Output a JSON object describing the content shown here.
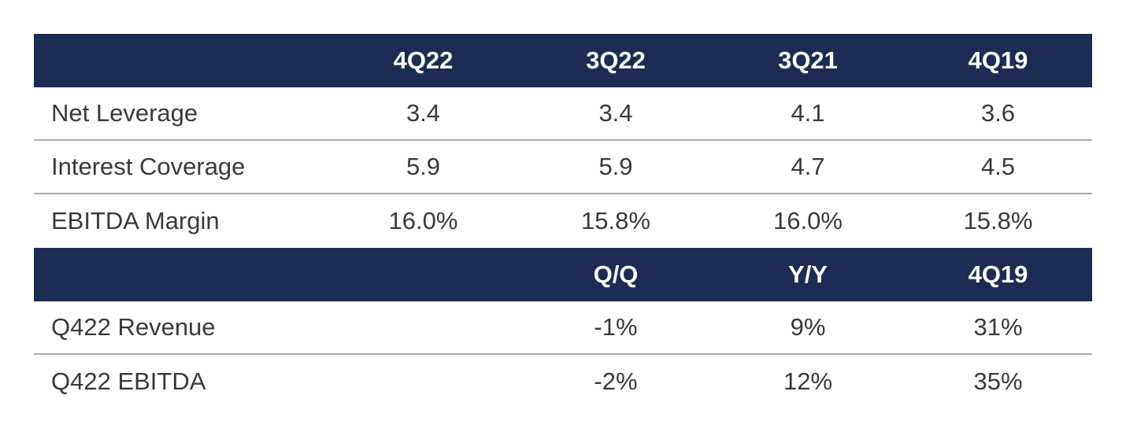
{
  "chart_data": {
    "type": "table",
    "sections": [
      {
        "columns": [
          "",
          "4Q22",
          "3Q22",
          "3Q21",
          "4Q19"
        ],
        "rows": [
          {
            "label": "Net Leverage",
            "values": [
              "3.4",
              "3.4",
              "4.1",
              "3.6"
            ]
          },
          {
            "label": "Interest Coverage",
            "values": [
              "5.9",
              "5.9",
              "4.7",
              "4.5"
            ]
          },
          {
            "label": "EBITDA Margin",
            "values": [
              "16.0%",
              "15.8%",
              "16.0%",
              "15.8%"
            ]
          }
        ]
      },
      {
        "columns": [
          "",
          "",
          "Q/Q",
          "Y/Y",
          "4Q19"
        ],
        "rows": [
          {
            "label": "Q422 Revenue",
            "values": [
              "",
              "-1%",
              "9%",
              "31%"
            ]
          },
          {
            "label": "Q422 EBITDA",
            "values": [
              "",
              "-2%",
              "12%",
              "35%"
            ]
          }
        ]
      }
    ]
  },
  "colors": {
    "header_bg": "#1c2c54",
    "header_text": "#ffffff",
    "body_text": "#3a3a3a",
    "divider": "#a6adb6"
  }
}
